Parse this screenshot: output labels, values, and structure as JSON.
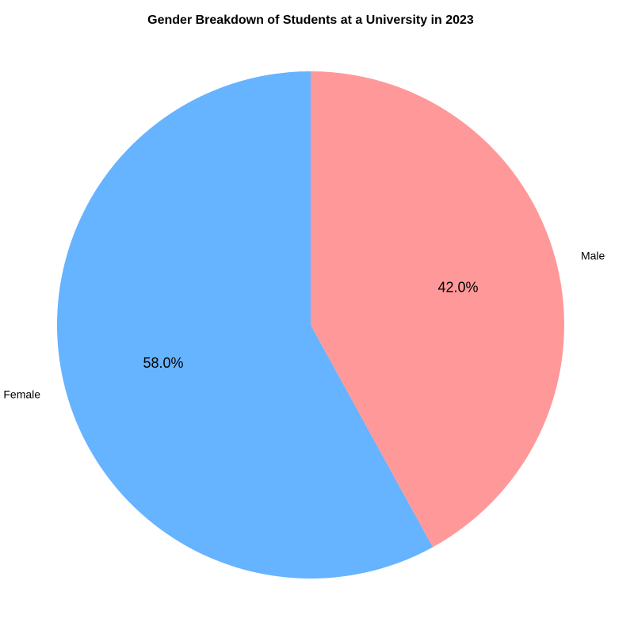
{
  "chart_data": {
    "type": "pie",
    "title": "Gender Breakdown of Students at a University in 2023",
    "start_angle_deg": 90,
    "direction": "counterclockwise",
    "slices": [
      {
        "label": "Female",
        "value": 58.0,
        "pct_label": "58.0%",
        "color": "#66b3ff"
      },
      {
        "label": "Male",
        "value": 42.0,
        "pct_label": "42.0%",
        "color": "#ff9999"
      }
    ]
  }
}
